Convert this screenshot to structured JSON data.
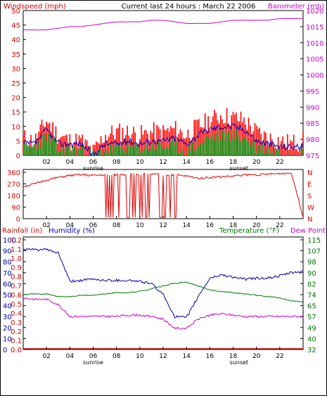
{
  "header": {
    "left_title": "Windspeed (mph)",
    "center_title": "Current last 24 hours : March 22 2006",
    "right_title": "Barometer (mb)"
  },
  "colors": {
    "wind": "#dd0000",
    "gust": "#ff0000",
    "avg_wind": "#0000cc",
    "wind_green": "#008800",
    "barometer": "#cc00cc",
    "direction": "#dd0000",
    "humidity": "#0000aa",
    "temperature": "#007700",
    "dew_point": "#cc00cc",
    "rainfall": "#cc0000"
  },
  "x_ticks": [
    "02",
    "04",
    "06",
    "08",
    "10",
    "12",
    "14",
    "16",
    "18",
    "20",
    "22"
  ],
  "sunrise_label": "sunrise",
  "sunset_label": "sunset",
  "chart_data": [
    {
      "type": "line",
      "title": "Current last 24 hours : March 22 2006",
      "x_hours": [
        0,
        1,
        2,
        3,
        4,
        5,
        6,
        7,
        8,
        9,
        10,
        11,
        12,
        13,
        14,
        15,
        16,
        17,
        18,
        19,
        20,
        21,
        22,
        23,
        24
      ],
      "left_axis": {
        "label": "Windspeed (mph)",
        "range": [
          0,
          50
        ],
        "ticks": [
          0,
          5,
          10,
          15,
          20,
          25,
          30,
          35,
          40,
          45,
          50
        ]
      },
      "right_axis": {
        "label": "Barometer (mb)",
        "range": [
          975,
          1020
        ],
        "ticks": [
          975,
          980,
          985,
          990,
          995,
          1000,
          1005,
          1010,
          1015,
          1020
        ]
      },
      "series": [
        {
          "name": "Barometer (mb)",
          "axis": "right",
          "values": [
            1014,
            1014,
            1014,
            1014.5,
            1015,
            1015,
            1015.5,
            1016,
            1016.5,
            1016.5,
            1016.5,
            1017,
            1017,
            1016.5,
            1016,
            1016,
            1016,
            1016.5,
            1017,
            1017,
            1017,
            1017,
            1017.5,
            1017.5,
            1017.5
          ]
        },
        {
          "name": "Windspeed gusts",
          "axis": "left",
          "values": [
            6,
            5,
            12,
            7,
            5,
            5,
            1,
            7,
            8,
            8,
            7,
            8,
            8,
            9,
            7,
            10,
            12,
            14,
            13,
            12,
            8,
            6,
            5,
            4,
            5
          ]
        },
        {
          "name": "Windspeed average",
          "axis": "left",
          "values": [
            4,
            4,
            9,
            4,
            4,
            4,
            0,
            4,
            4,
            5,
            4,
            5,
            5,
            6,
            4,
            7,
            9,
            10,
            10,
            9,
            5,
            4,
            3,
            3,
            3
          ]
        },
        {
          "name": "Windspeed low",
          "axis": "left",
          "values": [
            2,
            3,
            7,
            2,
            2,
            2,
            0,
            2,
            2,
            3,
            2,
            3,
            3,
            3,
            2,
            4,
            6,
            7,
            7,
            6,
            3,
            2,
            1,
            1,
            2
          ]
        }
      ]
    },
    {
      "type": "line",
      "left_axis": {
        "label": "",
        "range": [
          0,
          360
        ],
        "ticks": [
          0,
          90,
          180,
          270,
          360
        ]
      },
      "right_axis": {
        "label": "",
        "ticks": [
          "N",
          "W",
          "S",
          "E",
          "N"
        ]
      },
      "series": [
        {
          "name": "Wind direction",
          "axis": "left",
          "values": [
            250,
            270,
            300,
            320,
            335,
            340,
            335,
            340,
            340,
            345,
            345,
            345,
            340,
            340,
            330,
            315,
            320,
            325,
            330,
            340,
            340,
            345,
            350,
            355,
            15
          ]
        }
      ]
    },
    {
      "type": "line",
      "left_labels": {
        "rainfall": "Rainfall (in)",
        "humidity": "Humidity (%)"
      },
      "right_labels": {
        "temperature": "Temperature (°F)",
        "dew_point": "Dew Point"
      },
      "humidity_ticks": [
        0,
        10,
        20,
        30,
        40,
        50,
        60,
        70,
        80,
        90,
        100
      ],
      "rainfall_ticks": [
        "0.0",
        "0.1",
        "0.2",
        "0.3",
        "0.4",
        "0.5",
        "0.6",
        "0.7",
        "0.8",
        "0.9",
        "1.0",
        "1.1",
        "1.2"
      ],
      "temp_ticks": [
        32,
        40,
        49,
        57,
        65,
        74,
        82,
        90,
        98,
        107,
        115
      ],
      "series": [
        {
          "name": "Humidity (%)",
          "axis": "humidity",
          "values": [
            91,
            91,
            91,
            88,
            62,
            63,
            64,
            63,
            63,
            63,
            62,
            60,
            50,
            30,
            29,
            48,
            65,
            68,
            66,
            64,
            65,
            65,
            67,
            70,
            71
          ]
        },
        {
          "name": "Temperature (°F)",
          "axis": "temp",
          "values": [
            74,
            74,
            74,
            72,
            72,
            73,
            73,
            74,
            75,
            75,
            76,
            78,
            80,
            82,
            83,
            80,
            77,
            76,
            75,
            74,
            73,
            72,
            71,
            69,
            68
          ]
        },
        {
          "name": "Dew Point",
          "axis": "temp",
          "values": [
            71,
            70,
            70,
            66,
            57,
            57,
            57,
            57,
            57,
            58,
            58,
            57,
            55,
            48,
            48,
            55,
            58,
            59,
            58,
            57,
            57,
            57,
            57,
            57,
            57
          ]
        },
        {
          "name": "Rainfall (in)",
          "axis": "rainfall",
          "values": [
            0,
            0,
            0,
            0,
            0,
            0,
            0,
            0,
            0,
            0,
            0,
            0,
            0,
            0,
            0,
            0,
            0,
            0,
            0,
            0,
            0,
            0,
            0,
            0,
            0
          ]
        }
      ]
    }
  ]
}
